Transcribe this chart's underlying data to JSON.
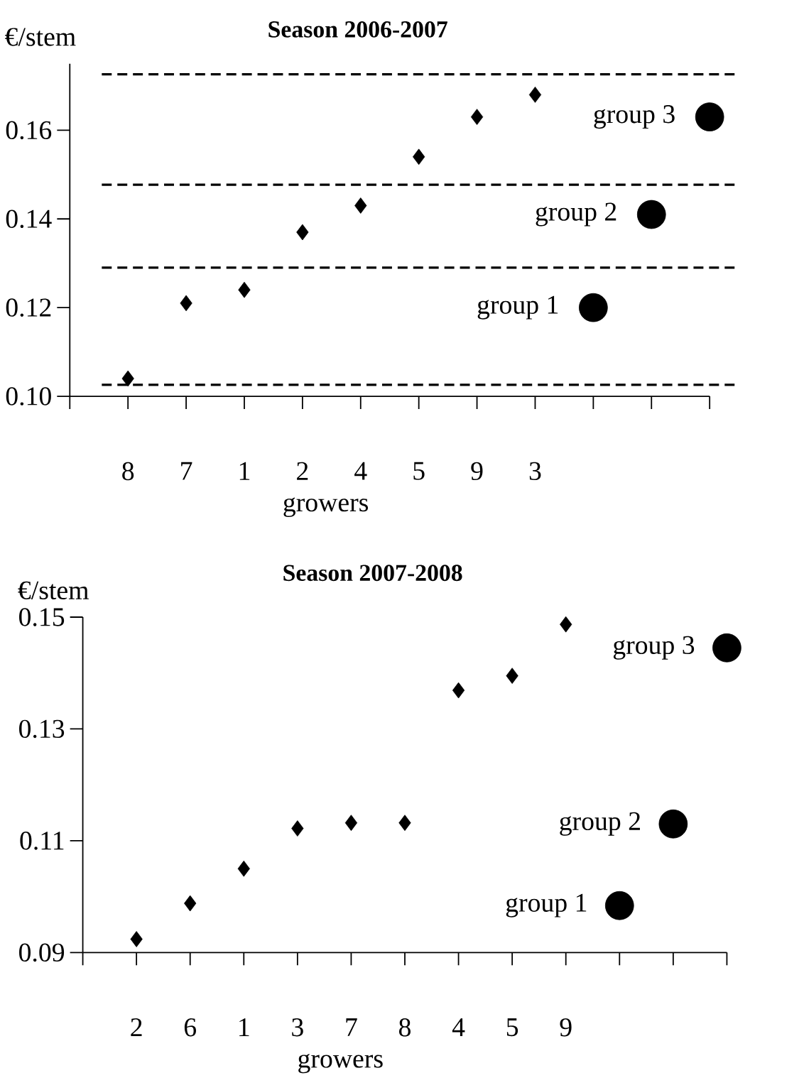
{
  "chart_data": [
    {
      "type": "scatter",
      "title": "Season 2006-2007",
      "xlabel": "growers",
      "ylabel": "€/stem",
      "categories": [
        "8",
        "7",
        "1",
        "2",
        "4",
        "5",
        "9",
        "3",
        null,
        null,
        null
      ],
      "series": [
        {
          "type": "scatter",
          "marker": "diamond",
          "color": "#000000",
          "values": [
            0.104,
            0.121,
            0.124,
            0.137,
            0.143,
            0.154,
            0.163,
            0.168,
            null,
            null,
            null
          ]
        },
        {
          "type": "scatter",
          "marker": "circle",
          "color": "#000000",
          "values": [
            null,
            null,
            null,
            null,
            null,
            null,
            null,
            null,
            0.12,
            0.141,
            0.163
          ]
        }
      ],
      "ylim": [
        0.1,
        0.175
      ],
      "yticks": [
        {
          "value": 0.1,
          "label": "0.10"
        },
        {
          "value": 0.12,
          "label": "0.12"
        },
        {
          "value": 0.14,
          "label": "0.14"
        },
        {
          "value": 0.16,
          "label": "0.16"
        }
      ],
      "ref_lines": [
        {
          "axis": "y",
          "value": 0.1726,
          "line_style": "dashed",
          "color": "#000000"
        },
        {
          "axis": "y",
          "value": 0.1477,
          "line_style": "dashed",
          "color": "#000000"
        },
        {
          "axis": "y",
          "value": 0.129,
          "line_style": "dashed",
          "color": "#000000"
        },
        {
          "axis": "y",
          "value": 0.1026,
          "line_style": "dashed",
          "color": "#000000"
        }
      ],
      "annotations": [
        "group 1",
        "group 2",
        "group 3"
      ]
    },
    {
      "type": "scatter",
      "title": "Season 2007-2008",
      "xlabel": "growers",
      "ylabel": "€/stem",
      "categories": [
        "2",
        "6",
        "1",
        "3",
        "7",
        "8",
        "4",
        "5",
        "9",
        null,
        null,
        null
      ],
      "series": [
        {
          "type": "scatter",
          "marker": "diamond",
          "color": "#000000",
          "values": [
            0.0924,
            0.0988,
            0.105,
            0.1122,
            0.1132,
            0.1132,
            0.1369,
            0.1395,
            0.1487,
            null,
            null,
            null
          ]
        },
        {
          "type": "scatter",
          "marker": "circle",
          "color": "#000000",
          "values": [
            null,
            null,
            null,
            null,
            null,
            null,
            null,
            null,
            null,
            0.0984,
            0.113,
            0.1445
          ]
        }
      ],
      "ylim": [
        0.09,
        0.15
      ],
      "yticks": [
        0.09,
        0.11,
        0.13,
        0.15
      ],
      "annotations": [
        "group 1",
        "group 2",
        "group 3"
      ]
    }
  ]
}
